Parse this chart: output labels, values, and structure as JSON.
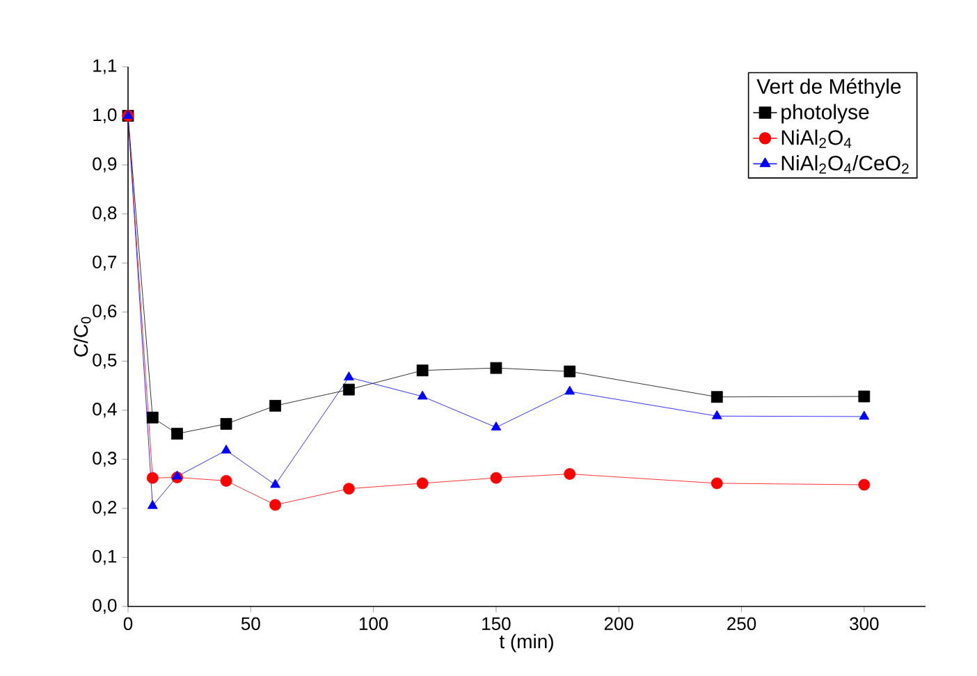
{
  "chart_data": {
    "type": "line",
    "xlabel": "t (min)",
    "ylabel": "C/C$_{0}$",
    "legend_title": "Vert de Méthyle",
    "x": [
      0,
      10,
      20,
      40,
      60,
      90,
      120,
      150,
      180,
      240,
      300
    ],
    "series": [
      {
        "name": "photolyse",
        "color": "#000000",
        "marker": "square",
        "values": [
          1.0,
          0.385,
          0.352,
          0.372,
          0.409,
          0.442,
          0.481,
          0.486,
          0.479,
          0.427,
          0.428
        ]
      },
      {
        "name": "NiAl$_{2}$O$_{4}$",
        "color": "#ff0000",
        "marker": "circle",
        "values": [
          1.0,
          0.262,
          0.263,
          0.256,
          0.207,
          0.24,
          0.251,
          0.262,
          0.27,
          0.251,
          0.248
        ]
      },
      {
        "name": "NiAl$_{2}$O$_{4}$/CeO$_{2}$",
        "color": "#0000ff",
        "marker": "triangle",
        "values": [
          1.0,
          0.205,
          0.265,
          0.318,
          0.248,
          0.467,
          0.428,
          0.365,
          0.438,
          0.388,
          0.387
        ]
      }
    ],
    "xlim": [
      0,
      325
    ],
    "ylim": [
      0,
      1.1
    ],
    "xticks": [
      0,
      50,
      100,
      150,
      200,
      250,
      300
    ],
    "yticks": [
      {
        "value": 0,
        "label": "0,0"
      },
      {
        "value": 0.1,
        "label": "0,1"
      },
      {
        "value": 0.2,
        "label": "0,2"
      },
      {
        "value": 0.3,
        "label": "0,3"
      },
      {
        "value": 0.4,
        "label": "0,4"
      },
      {
        "value": 0.5,
        "label": "0,5"
      },
      {
        "value": 0.6,
        "label": "0,6"
      },
      {
        "value": 0.7,
        "label": "0,7"
      },
      {
        "value": 0.8,
        "label": "0,8"
      },
      {
        "value": 0.9,
        "label": "0,9"
      },
      {
        "value": 1.0,
        "label": "1,0"
      },
      {
        "value": 1.1,
        "label": "1,1"
      }
    ],
    "grid": false,
    "legend": "top right",
    "line_style": "solid"
  }
}
